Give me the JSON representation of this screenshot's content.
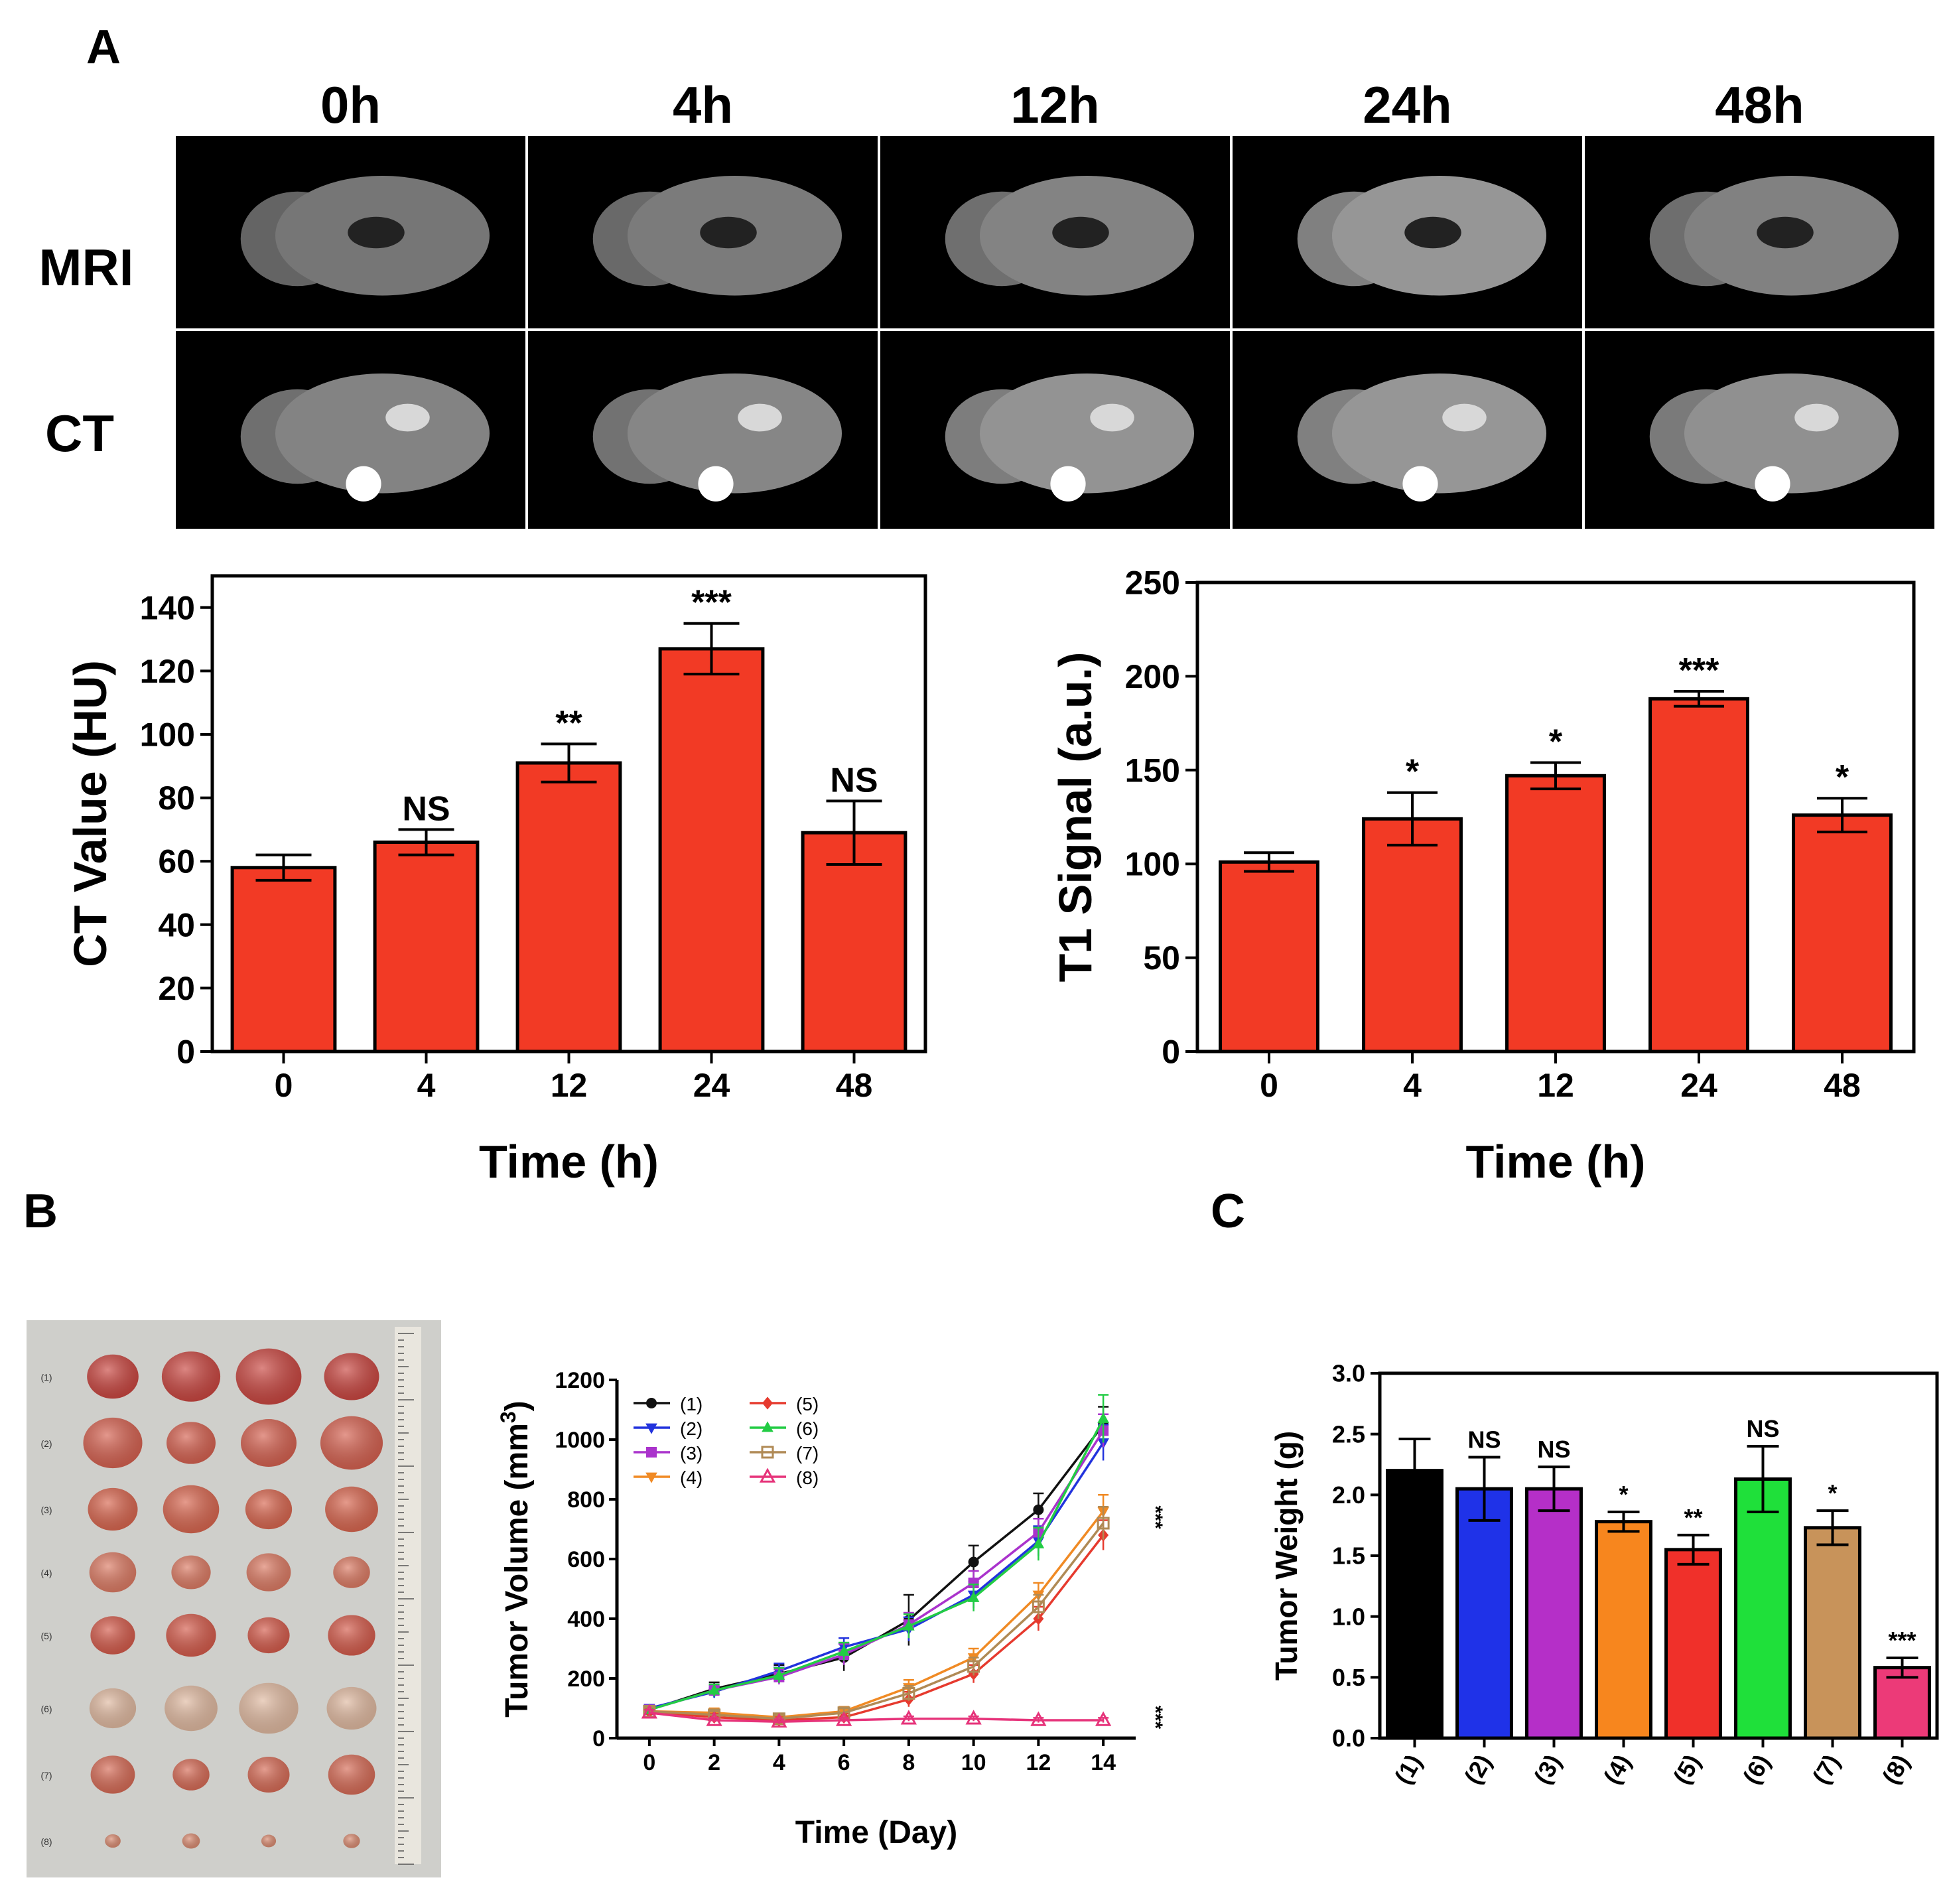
{
  "panels": {
    "a": "A",
    "b": "B",
    "c": "C"
  },
  "imaging": {
    "time_labels": [
      "0h",
      "4h",
      "12h",
      "24h",
      "48h"
    ],
    "row_labels": [
      "MRI",
      "CT"
    ],
    "mri_brightness": [
      0.3,
      0.33,
      0.38,
      0.5,
      0.37
    ],
    "ct_brightness": [
      0.38,
      0.4,
      0.48,
      0.5,
      0.46
    ]
  },
  "tumor_photo": {
    "row_labels": [
      "(1)",
      "(2)",
      "(3)",
      "(4)",
      "(5)",
      "(6)",
      "(7)",
      "(8)"
    ],
    "background": "#cfcfcb",
    "tumor_colors": [
      "#c9453f",
      "#d5604f",
      "#d8654e",
      "#dc7a63",
      "#d45a4a",
      "#e0b9a0",
      "#d66a55",
      "#d98a70"
    ]
  },
  "chart_data": [
    {
      "id": "ct",
      "type": "bar",
      "categories": [
        "0",
        "4",
        "12",
        "24",
        "48"
      ],
      "values": [
        58,
        66,
        91,
        127,
        69
      ],
      "errors": [
        4,
        4,
        6,
        8,
        10
      ],
      "annotations": [
        "",
        "NS",
        "**",
        "***",
        "NS"
      ],
      "xlabel": "Time (h)",
      "ylabel": "CT Value (HU)",
      "ylim": [
        0,
        150
      ],
      "yticks": [
        0,
        20,
        40,
        60,
        80,
        100,
        120,
        140
      ],
      "color": "#f23a25"
    },
    {
      "id": "t1",
      "type": "bar",
      "categories": [
        "0",
        "4",
        "12",
        "24",
        "48"
      ],
      "values": [
        101,
        124,
        147,
        188,
        126
      ],
      "errors": [
        5,
        14,
        7,
        4,
        9
      ],
      "annotations": [
        "",
        "*",
        "*",
        "***",
        "*"
      ],
      "xlabel": "Time (h)",
      "ylabel": "T1 Signal (a.u.)",
      "ylim": [
        0,
        250
      ],
      "yticks": [
        0,
        50,
        100,
        150,
        200,
        250
      ],
      "color": "#f23a25"
    },
    {
      "id": "vol",
      "type": "line",
      "x": [
        0,
        2,
        4,
        6,
        8,
        10,
        12,
        14
      ],
      "xticks": [
        0,
        2,
        4,
        6,
        8,
        10,
        12,
        14
      ],
      "xlabel": "Time (Day)",
      "ylabel": "Tumor Volume (mm",
      "ylabel_sup": "3",
      "ylabel_close": ")",
      "ylim": [
        0,
        1200
      ],
      "xlim": [
        -1,
        15
      ],
      "yticks": [
        0,
        200,
        400,
        600,
        800,
        1000,
        1200
      ],
      "annotations": [
        "***",
        "***"
      ],
      "series": [
        {
          "name": "(1)",
          "color": "#111111",
          "marker": "circle",
          "values": [
            95,
            165,
            215,
            270,
            395,
            590,
            765,
            1050
          ],
          "errors": [
            12,
            22,
            30,
            45,
            85,
            55,
            55,
            60
          ]
        },
        {
          "name": "(2)",
          "color": "#2233dd",
          "marker": "triangle-down",
          "values": [
            100,
            155,
            225,
            305,
            365,
            480,
            660,
            990
          ],
          "errors": [
            12,
            20,
            25,
            30,
            40,
            45,
            50,
            60
          ]
        },
        {
          "name": "(3)",
          "color": "#aa33cc",
          "marker": "square",
          "values": [
            95,
            160,
            205,
            280,
            380,
            520,
            690,
            1030
          ],
          "errors": [
            12,
            20,
            25,
            35,
            40,
            40,
            45,
            55
          ]
        },
        {
          "name": "(4)",
          "color": "#f08a24",
          "marker": "triangle-down",
          "values": [
            90,
            85,
            70,
            90,
            170,
            270,
            480,
            760
          ],
          "errors": [
            12,
            15,
            12,
            15,
            25,
            30,
            40,
            55
          ]
        },
        {
          "name": "(5)",
          "color": "#e63a2e",
          "marker": "diamond",
          "values": [
            88,
            70,
            60,
            70,
            130,
            215,
            400,
            680
          ],
          "errors": [
            12,
            12,
            10,
            12,
            25,
            30,
            40,
            50
          ]
        },
        {
          "name": "(6)",
          "color": "#22cc44",
          "marker": "triangle-up",
          "values": [
            95,
            160,
            210,
            290,
            375,
            470,
            650,
            1070
          ],
          "errors": [
            12,
            20,
            25,
            30,
            40,
            45,
            55,
            80
          ]
        },
        {
          "name": "(7)",
          "color": "#b08a55",
          "marker": "square-open",
          "values": [
            90,
            78,
            65,
            85,
            150,
            240,
            440,
            720
          ],
          "errors": [
            12,
            12,
            12,
            15,
            25,
            30,
            40,
            55
          ]
        },
        {
          "name": "(8)",
          "color": "#e6337a",
          "marker": "triangle-open",
          "values": [
            85,
            60,
            55,
            60,
            65,
            65,
            60,
            60
          ],
          "errors": [
            10,
            8,
            8,
            8,
            8,
            8,
            8,
            8
          ]
        }
      ]
    },
    {
      "id": "weight",
      "type": "bar",
      "categories": [
        "(1)",
        "(2)",
        "(3)",
        "(4)",
        "(5)",
        "(6)",
        "(7)",
        "(8)"
      ],
      "values": [
        2.2,
        2.05,
        2.05,
        1.78,
        1.55,
        2.13,
        1.73,
        0.58
      ],
      "errors": [
        0.26,
        0.26,
        0.18,
        0.08,
        0.12,
        0.27,
        0.14,
        0.08
      ],
      "annotations": [
        "",
        "NS",
        "NS",
        "*",
        "**",
        "NS",
        "*",
        "***"
      ],
      "colors": [
        "#000000",
        "#1f32e8",
        "#b52fc8",
        "#f7861e",
        "#f0302a",
        "#1fe03a",
        "#c8935a",
        "#ec3a78"
      ],
      "xlabel": "",
      "ylabel": "Tumor Weight (g)",
      "ylim": [
        0,
        3.0
      ],
      "yticks": [
        0.0,
        0.5,
        1.0,
        1.5,
        2.0,
        2.5,
        3.0
      ],
      "ytick_labels": [
        "0.0",
        "0.5",
        "1.0",
        "1.5",
        "2.0",
        "2.5",
        "3.0"
      ]
    }
  ]
}
